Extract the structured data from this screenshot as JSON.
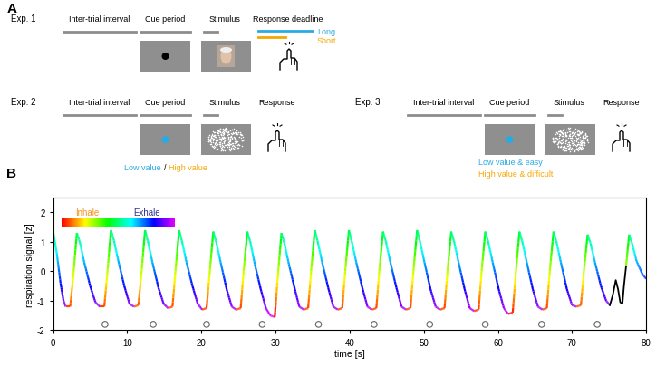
{
  "panel_a": {
    "label": "A",
    "experiments": [
      {
        "name": "Exp. 1",
        "periods": [
          "Inter-trial interval",
          "Cue period",
          "Stimulus",
          "Response deadline"
        ],
        "deadlines": [
          {
            "label": "Long",
            "color": "#29abe2"
          },
          {
            "label": "Short",
            "color": "#f7a600"
          }
        ]
      },
      {
        "name": "Exp. 2",
        "periods": [
          "Inter-trial interval",
          "Cue period",
          "Stimulus",
          "Response"
        ],
        "cue_conditions": [
          {
            "label": "Low value",
            "color": "#29abe2"
          },
          {
            "label": "High value",
            "color": "#f7a600"
          }
        ],
        "separator": "/"
      },
      {
        "name": "Exp. 3",
        "periods": [
          "Inter-trial interval",
          "Cue period",
          "Stimulus",
          "Response"
        ],
        "cue_conditions": [
          {
            "label": "Low value & easy",
            "color": "#29abe2"
          },
          {
            "label": "High value & difficult",
            "color": "#f7a600"
          }
        ]
      }
    ]
  },
  "chart_data": {
    "label": "B",
    "type": "line",
    "xlabel": "time [s]",
    "ylabel": "respiration signal [z]",
    "xlim": [
      0,
      80
    ],
    "xticks": [
      0,
      10,
      20,
      30,
      40,
      50,
      60,
      70,
      80
    ],
    "ylim": [
      -2,
      2.5
    ],
    "yticks": [
      -2,
      -1,
      0,
      1,
      2
    ],
    "phase_key": [
      {
        "label": "Inhale",
        "color": "#f7941d"
      },
      {
        "label": "Exhale",
        "color": "#2e3192"
      }
    ],
    "series": [
      {
        "type": "line",
        "x": [
          0,
          0.5,
          1.0,
          1.4,
          1.7,
          2.3,
          2.7,
          3.2,
          3.6,
          4.2,
          5.0,
          5.7,
          6.3,
          6.9,
          7.3,
          7.8,
          8.2,
          8.8,
          9.6,
          10.3,
          10.9,
          11.5,
          11.9,
          12.4,
          12.8,
          13.4,
          14.2,
          14.9,
          15.5,
          16.1,
          16.5,
          17.0,
          17.4,
          18.0,
          18.8,
          19.5,
          20.1,
          20.7,
          21.1,
          21.6,
          22.0,
          22.6,
          23.4,
          24.1,
          24.7,
          25.3,
          25.7,
          26.2,
          26.6,
          27.2,
          28.0,
          28.7,
          29.3,
          29.9,
          30.3,
          30.8,
          31.2,
          31.8,
          32.6,
          33.2,
          33.8,
          34.4,
          34.8,
          35.3,
          35.7,
          36.3,
          37.1,
          37.8,
          38.4,
          39.0,
          39.4,
          39.9,
          40.3,
          40.9,
          41.7,
          42.4,
          43.0,
          43.6,
          44.0,
          44.5,
          44.9,
          45.5,
          46.3,
          47.0,
          47.6,
          48.2,
          48.6,
          49.1,
          49.5,
          50.1,
          50.9,
          51.6,
          52.2,
          52.8,
          53.2,
          53.7,
          54.1,
          54.7,
          55.5,
          56.2,
          56.8,
          57.4,
          57.8,
          58.3,
          58.7,
          59.3,
          60.1,
          60.8,
          61.4,
          62.0,
          62.4,
          62.9,
          63.3,
          63.9,
          64.7,
          65.4,
          66.0,
          66.6,
          67.0,
          67.5,
          67.9,
          68.5,
          69.3,
          70.0,
          70.6,
          71.2,
          71.6,
          72.1,
          72.5,
          73.1,
          73.9,
          74.6,
          75.1
        ],
        "values": [
          1.35,
          0.6,
          -0.4,
          -1.0,
          -1.2,
          -1.2,
          -0.2,
          1.3,
          1.0,
          0.3,
          -0.5,
          -1.05,
          -1.2,
          -1.2,
          -0.1,
          1.4,
          1.05,
          0.35,
          -0.5,
          -1.1,
          -1.2,
          -1.15,
          -0.1,
          1.4,
          1.0,
          0.3,
          -0.55,
          -1.1,
          -1.25,
          -1.2,
          0.0,
          1.4,
          1.0,
          0.3,
          -0.5,
          -1.1,
          -1.3,
          -1.25,
          -0.1,
          1.35,
          1.0,
          0.3,
          -0.6,
          -1.2,
          -1.3,
          -1.25,
          0.0,
          1.35,
          1.0,
          0.25,
          -0.6,
          -1.25,
          -1.5,
          -1.55,
          -0.2,
          1.3,
          0.95,
          0.25,
          -0.6,
          -1.2,
          -1.3,
          -1.25,
          0.0,
          1.4,
          1.0,
          0.3,
          -0.55,
          -1.2,
          -1.3,
          -1.25,
          0.0,
          1.4,
          1.0,
          0.3,
          -0.55,
          -1.2,
          -1.3,
          -1.25,
          0.0,
          1.35,
          1.0,
          0.3,
          -0.55,
          -1.2,
          -1.3,
          -1.25,
          0.0,
          1.4,
          1.0,
          0.3,
          -0.6,
          -1.2,
          -1.3,
          -1.25,
          0.0,
          1.35,
          1.0,
          0.3,
          -0.6,
          -1.25,
          -1.35,
          -1.3,
          0.0,
          1.35,
          1.0,
          0.3,
          -0.6,
          -1.25,
          -1.45,
          -1.4,
          -0.1,
          1.35,
          1.0,
          0.3,
          -0.6,
          -1.2,
          -1.3,
          -1.25,
          0.0,
          1.35,
          1.0,
          0.3,
          -0.6,
          -1.15,
          -1.2,
          -1.15,
          0.0,
          1.25,
          0.95,
          0.3,
          -0.5,
          -1.0,
          -1.15
        ]
      },
      {
        "type": "line",
        "color": "black",
        "x": [
          75.1,
          75.5,
          75.9,
          76.2,
          76.5,
          76.8,
          77.0,
          77.3
        ],
        "values": [
          -1.15,
          -0.8,
          -0.3,
          -0.6,
          -1.05,
          -1.1,
          -0.5,
          0.2
        ]
      },
      {
        "type": "line",
        "x": [
          77.3,
          77.7,
          78.1,
          78.7,
          79.5,
          80
        ],
        "values": [
          0.2,
          1.25,
          0.95,
          0.35,
          -0.1,
          -0.25
        ]
      },
      {
        "type": "scatter",
        "marker": "circle",
        "color": "#666666",
        "x": [
          7,
          13.5,
          20.7,
          28.2,
          35.8,
          43.3,
          50.8,
          58.3,
          65.9,
          73.4
        ],
        "values": [
          -1.8,
          -1.8,
          -1.8,
          -1.8,
          -1.8,
          -1.8,
          -1.8,
          -1.8,
          -1.8,
          -1.8
        ]
      }
    ]
  }
}
